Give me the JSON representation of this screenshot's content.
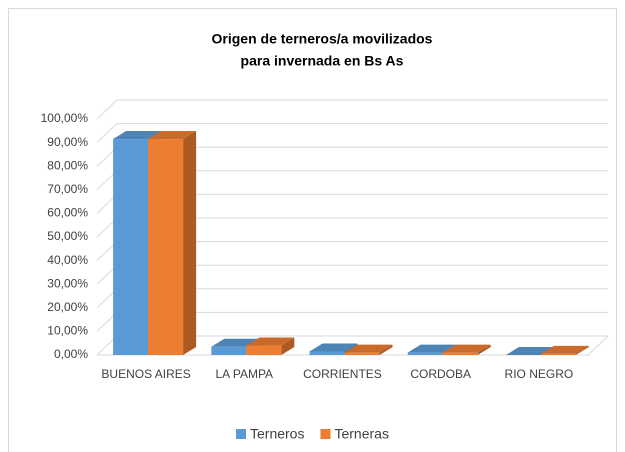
{
  "chart_data": {
    "type": "bar3d",
    "title": [
      "Origen de terneros/a movilizados",
      "para invernada en Bs As"
    ],
    "categories": [
      "BUENOS AIRES",
      "LA PAMPA",
      "CORRIENTES",
      "CORDOBA",
      "RIO NEGRO"
    ],
    "series": [
      {
        "name": "Terneros",
        "color": "#5b9bd5",
        "values": [
          91.5,
          3.5,
          1.5,
          1,
          0
        ]
      },
      {
        "name": "Terneras",
        "color": "#ed7d31",
        "values": [
          91.5,
          4,
          1,
          1,
          0.5
        ]
      }
    ],
    "ylim": [
      0,
      100
    ],
    "yticks": [
      {
        "value": 0,
        "label": "0,00%"
      },
      {
        "value": 10,
        "label": "10,00%"
      },
      {
        "value": 20,
        "label": "20,00%"
      },
      {
        "value": 30,
        "label": "30,00%"
      },
      {
        "value": 40,
        "label": "40,00%"
      },
      {
        "value": 50,
        "label": "50,00%"
      },
      {
        "value": 60,
        "label": "60,00%"
      },
      {
        "value": 70,
        "label": "70,00%"
      },
      {
        "value": 80,
        "label": "80,00%"
      },
      {
        "value": 90,
        "label": "90,00%"
      },
      {
        "value": 100,
        "label": "100,00%"
      }
    ],
    "grid": true,
    "legend": "bottom"
  }
}
